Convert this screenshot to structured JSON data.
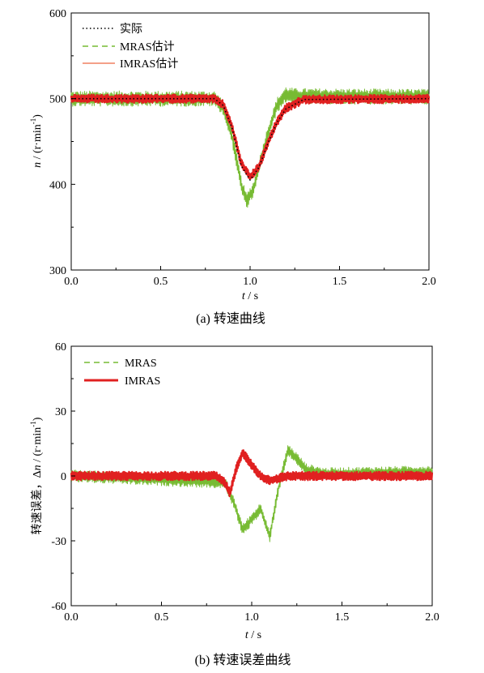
{
  "chart_data": [
    {
      "type": "line",
      "caption": "(a)  转速曲线",
      "xlabel_var": "t",
      "xlabel_unit": " / s",
      "ylabel_var": "n",
      "ylabel_unit_pre": " / (r·min",
      "ylabel_unit_sup": "-1",
      "ylabel_unit_post": ")",
      "xlim": [
        0,
        2.0
      ],
      "ylim": [
        300,
        600
      ],
      "x_ticks": [
        "0.0",
        "0.5",
        "1.0",
        "1.5",
        "2.0"
      ],
      "y_ticks": [
        "300",
        "400",
        "500",
        "600"
      ],
      "legend_position": "top-left",
      "grid": false,
      "series": [
        {
          "name": "实际",
          "color": "#000000",
          "style": "dotted",
          "x": [
            0,
            0.8,
            0.85,
            0.9,
            0.95,
            1.0,
            1.05,
            1.1,
            1.15,
            1.2,
            1.3,
            2.0
          ],
          "y": [
            500,
            500,
            492,
            465,
            422,
            405,
            420,
            448,
            472,
            488,
            499,
            500
          ]
        },
        {
          "name": "MRAS估计",
          "color": "#77bb33",
          "style": "dashed",
          "x": [
            0,
            0.8,
            0.85,
            0.9,
            0.95,
            0.98,
            1.02,
            1.05,
            1.1,
            1.15,
            1.2,
            1.25,
            2.0
          ],
          "y": [
            500,
            500,
            490,
            455,
            400,
            380,
            395,
            420,
            460,
            492,
            505,
            503,
            502
          ]
        },
        {
          "name": "IMRAS估计",
          "color": "#e02020",
          "style": "solid",
          "x": [
            0,
            0.8,
            0.85,
            0.9,
            0.95,
            1.0,
            1.05,
            1.1,
            1.15,
            1.2,
            1.3,
            2.0
          ],
          "y": [
            500,
            500,
            493,
            467,
            425,
            408,
            421,
            449,
            473,
            489,
            499,
            500
          ]
        }
      ]
    },
    {
      "type": "line",
      "caption": "(b)  转速误差曲线",
      "xlabel_var": "t",
      "xlabel_unit": " / s",
      "ylabel_prefix": "转速误差，Δ",
      "ylabel_var": "n",
      "ylabel_unit_pre": " / (r·min",
      "ylabel_unit_sup": "-1",
      "ylabel_unit_post": ")",
      "xlim": [
        0,
        2.0
      ],
      "ylim": [
        -60,
        60
      ],
      "x_ticks": [
        "0.0",
        "0.5",
        "1.0",
        "1.5",
        "2.0"
      ],
      "y_ticks": [
        "-60",
        "-30",
        "0",
        "30",
        "60"
      ],
      "legend_position": "top-left",
      "grid": false,
      "series": [
        {
          "name": "MRAS",
          "color": "#77bb33",
          "style": "dashed",
          "x": [
            0,
            0.85,
            0.9,
            0.95,
            1.0,
            1.05,
            1.1,
            1.15,
            1.2,
            1.25,
            1.3,
            1.4,
            2.0
          ],
          "y": [
            0,
            -3,
            -12,
            -25,
            -20,
            -15,
            -28,
            -5,
            12,
            8,
            3,
            1,
            2
          ]
        },
        {
          "name": "IMRAS",
          "color": "#e02020",
          "style": "solid",
          "x": [
            0,
            0.8,
            0.85,
            0.88,
            0.92,
            0.95,
            1.0,
            1.05,
            1.1,
            1.2,
            2.0
          ],
          "y": [
            0,
            0,
            -3,
            -8,
            5,
            11,
            5,
            0,
            -2,
            0,
            0
          ]
        }
      ]
    }
  ]
}
